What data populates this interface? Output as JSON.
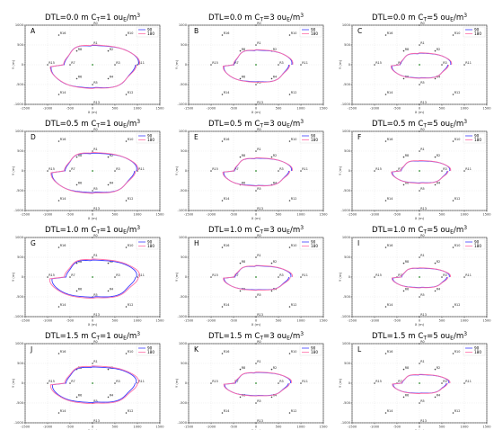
{
  "colors": {
    "series_90": "#3b3bff",
    "series_180": "#ff6ea8",
    "source": "#2e8b2e",
    "receptor": "#444444",
    "grid": "#d9d9d9"
  },
  "layout_text": {
    "dtl_prefix": "DTL=",
    "ct_prefix": "C",
    "ct_sub": "T",
    "ct_eq": "=",
    "unit_base": "ou",
    "unit_sub": "E",
    "unit_tail": "/m",
    "unit_sup": "3"
  },
  "chart_data": [
    {
      "letter": "A",
      "type": "line",
      "dtl": "0.0 m",
      "ct": "1",
      "xlabel": "X (m)",
      "ylabel": "Y (m)",
      "xlim": [
        -1500,
        1500
      ],
      "ylim": [
        -1000,
        1000
      ],
      "xticks": [
        "-1500",
        "-1000",
        "-500",
        "0",
        "500",
        "1000",
        "1500"
      ],
      "yticks": [
        "-1000",
        "-500",
        "0",
        "500",
        "1000"
      ],
      "grid": true,
      "legend": "top-right",
      "series": [
        {
          "name": "90",
          "rx": [
            1000,
            940,
            620,
            0,
            620,
            900
          ],
          "ry": [
            500,
            480,
            580,
            600
          ]
        },
        {
          "name": "180",
          "rx": [
            1010,
            950,
            625,
            0,
            630,
            905
          ],
          "ry": [
            505,
            485,
            585,
            605
          ]
        }
      ]
    },
    {
      "letter": "B",
      "type": "line",
      "dtl": "0.0 m",
      "ct": "3",
      "xlabel": "X (m)",
      "ylabel": "Y (m)",
      "xlim": [
        -1500,
        1500
      ],
      "ylim": [
        -1000,
        1000
      ],
      "xticks": [
        "-1500",
        "-1000",
        "-500",
        "0",
        "500",
        "1000",
        "1500"
      ],
      "yticks": [
        "-1000",
        "-500",
        "0",
        "500",
        "1000"
      ],
      "grid": true,
      "legend": "top-right",
      "series": [
        {
          "name": "90",
          "rx": [
            780,
            720,
            480,
            0,
            480,
            700
          ],
          "ry": [
            380,
            360,
            430,
            440
          ]
        },
        {
          "name": "180",
          "rx": [
            790,
            730,
            485,
            0,
            490,
            705
          ],
          "ry": [
            385,
            365,
            435,
            445
          ]
        }
      ]
    },
    {
      "letter": "C",
      "type": "line",
      "dtl": "0.0 m",
      "ct": "5",
      "xlabel": "X (m)",
      "ylabel": "Y (m)",
      "xlim": [
        -1500,
        1500
      ],
      "ylim": [
        -1000,
        1000
      ],
      "xticks": [
        "-1500",
        "-1000",
        "-500",
        "0",
        "500",
        "1000",
        "1500"
      ],
      "yticks": [
        "-1000",
        "-500",
        "0",
        "500",
        "1000"
      ],
      "grid": true,
      "legend": "top-right",
      "series": [
        {
          "name": "90",
          "rx": [
            680,
            620,
            420,
            0,
            420,
            600
          ],
          "ry": [
            300,
            280,
            330,
            340
          ]
        },
        {
          "name": "180",
          "rx": [
            690,
            630,
            425,
            0,
            425,
            610
          ],
          "ry": [
            305,
            285,
            335,
            345
          ]
        }
      ]
    },
    {
      "letter": "D",
      "type": "line",
      "dtl": "0.5 m",
      "ct": "1",
      "xlabel": "X (m)",
      "ylabel": "Y (m)",
      "xlim": [
        -1500,
        1500
      ],
      "ylim": [
        -1000,
        1000
      ],
      "xticks": [
        "-1500",
        "-1000",
        "-500",
        "0",
        "500",
        "1000",
        "1500"
      ],
      "yticks": [
        "-1000",
        "-500",
        "0",
        "500",
        "1000"
      ],
      "grid": true,
      "legend": "top-right",
      "series": [
        {
          "name": "90",
          "rx": [
            960,
            920,
            600,
            0,
            600,
            880
          ],
          "ry": [
            460,
            440,
            540,
            560
          ]
        },
        {
          "name": "180",
          "rx": [
            975,
            930,
            610,
            0,
            610,
            890
          ],
          "ry": [
            470,
            450,
            550,
            570
          ]
        }
      ]
    },
    {
      "letter": "E",
      "type": "line",
      "dtl": "0.5 m",
      "ct": "3",
      "xlabel": "X (m)",
      "ylabel": "Y (m)",
      "xlim": [
        -1500,
        1500
      ],
      "ylim": [
        -1000,
        1000
      ],
      "xticks": [
        "-1500",
        "-1000",
        "-500",
        "0",
        "500",
        "1000",
        "1500"
      ],
      "yticks": [
        "-1000",
        "-500",
        "0",
        "500",
        "1000"
      ],
      "grid": true,
      "legend": "top-right",
      "series": [
        {
          "name": "90",
          "rx": [
            770,
            720,
            470,
            0,
            470,
            700
          ],
          "ry": [
            330,
            310,
            370,
            380
          ]
        },
        {
          "name": "180",
          "rx": [
            780,
            730,
            475,
            0,
            475,
            710
          ],
          "ry": [
            335,
            315,
            375,
            385
          ]
        }
      ]
    },
    {
      "letter": "F",
      "type": "line",
      "dtl": "0.5 m",
      "ct": "5",
      "xlabel": "X (m)",
      "ylabel": "Y (m)",
      "xlim": [
        -1500,
        1500
      ],
      "ylim": [
        -1000,
        1000
      ],
      "xticks": [
        "-1500",
        "-1000",
        "-500",
        "0",
        "500",
        "1000",
        "1500"
      ],
      "yticks": [
        "-1000",
        "-500",
        "0",
        "500",
        "1000"
      ],
      "grid": true,
      "legend": "top-right",
      "series": [
        {
          "name": "90",
          "rx": [
            660,
            610,
            400,
            0,
            400,
            590
          ],
          "ry": [
            260,
            250,
            300,
            310
          ]
        },
        {
          "name": "180",
          "rx": [
            670,
            620,
            405,
            0,
            405,
            600
          ],
          "ry": [
            265,
            255,
            305,
            315
          ]
        }
      ]
    },
    {
      "letter": "G",
      "type": "line",
      "dtl": "1.0 m",
      "ct": "1",
      "xlabel": "X (m)",
      "ylabel": "Y (m)",
      "xlim": [
        -1500,
        1500
      ],
      "ylim": [
        -1000,
        1000
      ],
      "xticks": [
        "-1500",
        "-1000",
        "-500",
        "0",
        "500",
        "1000",
        "1500"
      ],
      "yticks": [
        "-1000",
        "-500",
        "0",
        "500",
        "1000"
      ],
      "grid": true,
      "legend": "top-right",
      "series": [
        {
          "name": "90",
          "rx": [
            960,
            940,
            580,
            0,
            600,
            880
          ],
          "ry": [
            440,
            420,
            500,
            520
          ]
        },
        {
          "name": "180",
          "rx": [
            1010,
            990,
            610,
            0,
            630,
            920
          ],
          "ry": [
            460,
            440,
            520,
            540
          ]
        }
      ]
    },
    {
      "letter": "H",
      "type": "line",
      "dtl": "1.0 m",
      "ct": "3",
      "xlabel": "X (m)",
      "ylabel": "Y (m)",
      "xlim": [
        -1500,
        1500
      ],
      "ylim": [
        -1000,
        1000
      ],
      "xticks": [
        "-1500",
        "-1000",
        "-500",
        "0",
        "500",
        "1000",
        "1500"
      ],
      "yticks": [
        "-1000",
        "-500",
        "0",
        "500",
        "1000"
      ],
      "grid": true,
      "legend": "top-right",
      "series": [
        {
          "name": "90",
          "rx": [
            760,
            720,
            460,
            0,
            460,
            690
          ],
          "ry": [
            290,
            270,
            320,
            330
          ]
        },
        {
          "name": "180",
          "rx": [
            780,
            740,
            470,
            0,
            470,
            700
          ],
          "ry": [
            295,
            275,
            325,
            335
          ]
        }
      ]
    },
    {
      "letter": "I",
      "type": "line",
      "dtl": "1.0 m",
      "ct": "5",
      "xlabel": "X (m)",
      "ylabel": "Y (m)",
      "xlim": [
        -1500,
        1500
      ],
      "ylim": [
        -1000,
        1000
      ],
      "xticks": [
        "-1500",
        "-1000",
        "-500",
        "0",
        "500",
        "1000",
        "1500"
      ],
      "yticks": [
        "-1000",
        "-500",
        "0",
        "500",
        "1000"
      ],
      "grid": true,
      "legend": "top-right",
      "series": [
        {
          "name": "90",
          "rx": [
            650,
            600,
            390,
            0,
            390,
            580
          ],
          "ry": [
            230,
            220,
            260,
            270
          ]
        },
        {
          "name": "180",
          "rx": [
            665,
            615,
            395,
            0,
            395,
            590
          ],
          "ry": [
            235,
            225,
            265,
            275
          ]
        }
      ]
    },
    {
      "letter": "J",
      "type": "line",
      "dtl": "1.5 m",
      "ct": "1",
      "xlabel": "X (m)",
      "ylabel": "Y (m)",
      "xlim": [
        -1500,
        1500
      ],
      "ylim": [
        -1000,
        1000
      ],
      "xticks": [
        "-1500",
        "-1000",
        "-500",
        "0",
        "500",
        "1000",
        "1500"
      ],
      "yticks": [
        "-1000",
        "-500",
        "0",
        "500",
        "1000"
      ],
      "grid": true,
      "legend": "top-right",
      "series": [
        {
          "name": "90",
          "rx": [
            950,
            930,
            580,
            0,
            590,
            870
          ],
          "ry": [
            420,
            400,
            480,
            500
          ]
        },
        {
          "name": "180",
          "rx": [
            990,
            970,
            600,
            0,
            610,
            900
          ],
          "ry": [
            440,
            420,
            500,
            520
          ]
        }
      ]
    },
    {
      "letter": "K",
      "type": "line",
      "dtl": "1.5 m",
      "ct": "3",
      "xlabel": "X (m)",
      "ylabel": "Y (m)",
      "xlim": [
        -1500,
        1500
      ],
      "ylim": [
        -1000,
        1000
      ],
      "xticks": [
        "-1500",
        "-1000",
        "-500",
        "0",
        "500",
        "1000",
        "1500"
      ],
      "yticks": [
        "-1000",
        "-500",
        "0",
        "500",
        "1000"
      ],
      "grid": true,
      "legend": "top-right",
      "series": [
        {
          "name": "90",
          "rx": [
            750,
            710,
            450,
            0,
            450,
            680
          ],
          "ry": [
            280,
            260,
            310,
            320
          ]
        },
        {
          "name": "180",
          "rx": [
            765,
            725,
            460,
            0,
            460,
            690
          ],
          "ry": [
            285,
            265,
            315,
            325
          ]
        }
      ]
    },
    {
      "letter": "L",
      "type": "line",
      "dtl": "1.5 m",
      "ct": "5",
      "xlabel": "X (m)",
      "ylabel": "Y (m)",
      "xlim": [
        -1500,
        1500
      ],
      "ylim": [
        -1000,
        1000
      ],
      "xticks": [
        "-1500",
        "-1000",
        "-500",
        "0",
        "500",
        "1000",
        "1500"
      ],
      "yticks": [
        "-1000",
        "-500",
        "0",
        "500",
        "1000"
      ],
      "grid": true,
      "legend": "top-right",
      "series": [
        {
          "name": "90",
          "rx": [
            640,
            590,
            380,
            0,
            380,
            570
          ],
          "ry": [
            220,
            210,
            250,
            260
          ]
        },
        {
          "name": "180",
          "rx": [
            655,
            605,
            385,
            0,
            385,
            580
          ],
          "ry": [
            225,
            215,
            255,
            265
          ]
        }
      ]
    }
  ],
  "receptors": [
    {
      "label": "R0",
      "x": 0,
      "y": 1000
    },
    {
      "label": "R1",
      "x": 0,
      "y": 500
    },
    {
      "label": "R2",
      "x": 350,
      "y": 350
    },
    {
      "label": "R3",
      "x": 500,
      "y": 0
    },
    {
      "label": "R4",
      "x": 350,
      "y": -350
    },
    {
      "label": "R5",
      "x": 0,
      "y": -500
    },
    {
      "label": "R6",
      "x": -350,
      "y": -350
    },
    {
      "label": "R7",
      "x": -500,
      "y": 0
    },
    {
      "label": "R8",
      "x": -350,
      "y": 350
    },
    {
      "label": "R10",
      "x": 750,
      "y": 750
    },
    {
      "label": "R11",
      "x": 1000,
      "y": 0
    },
    {
      "label": "R12",
      "x": 750,
      "y": -750
    },
    {
      "label": "R13",
      "x": 0,
      "y": -1000
    },
    {
      "label": "R14",
      "x": -750,
      "y": -750
    },
    {
      "label": "R15",
      "x": -1000,
      "y": 0
    },
    {
      "label": "R16",
      "x": -750,
      "y": 750
    }
  ]
}
